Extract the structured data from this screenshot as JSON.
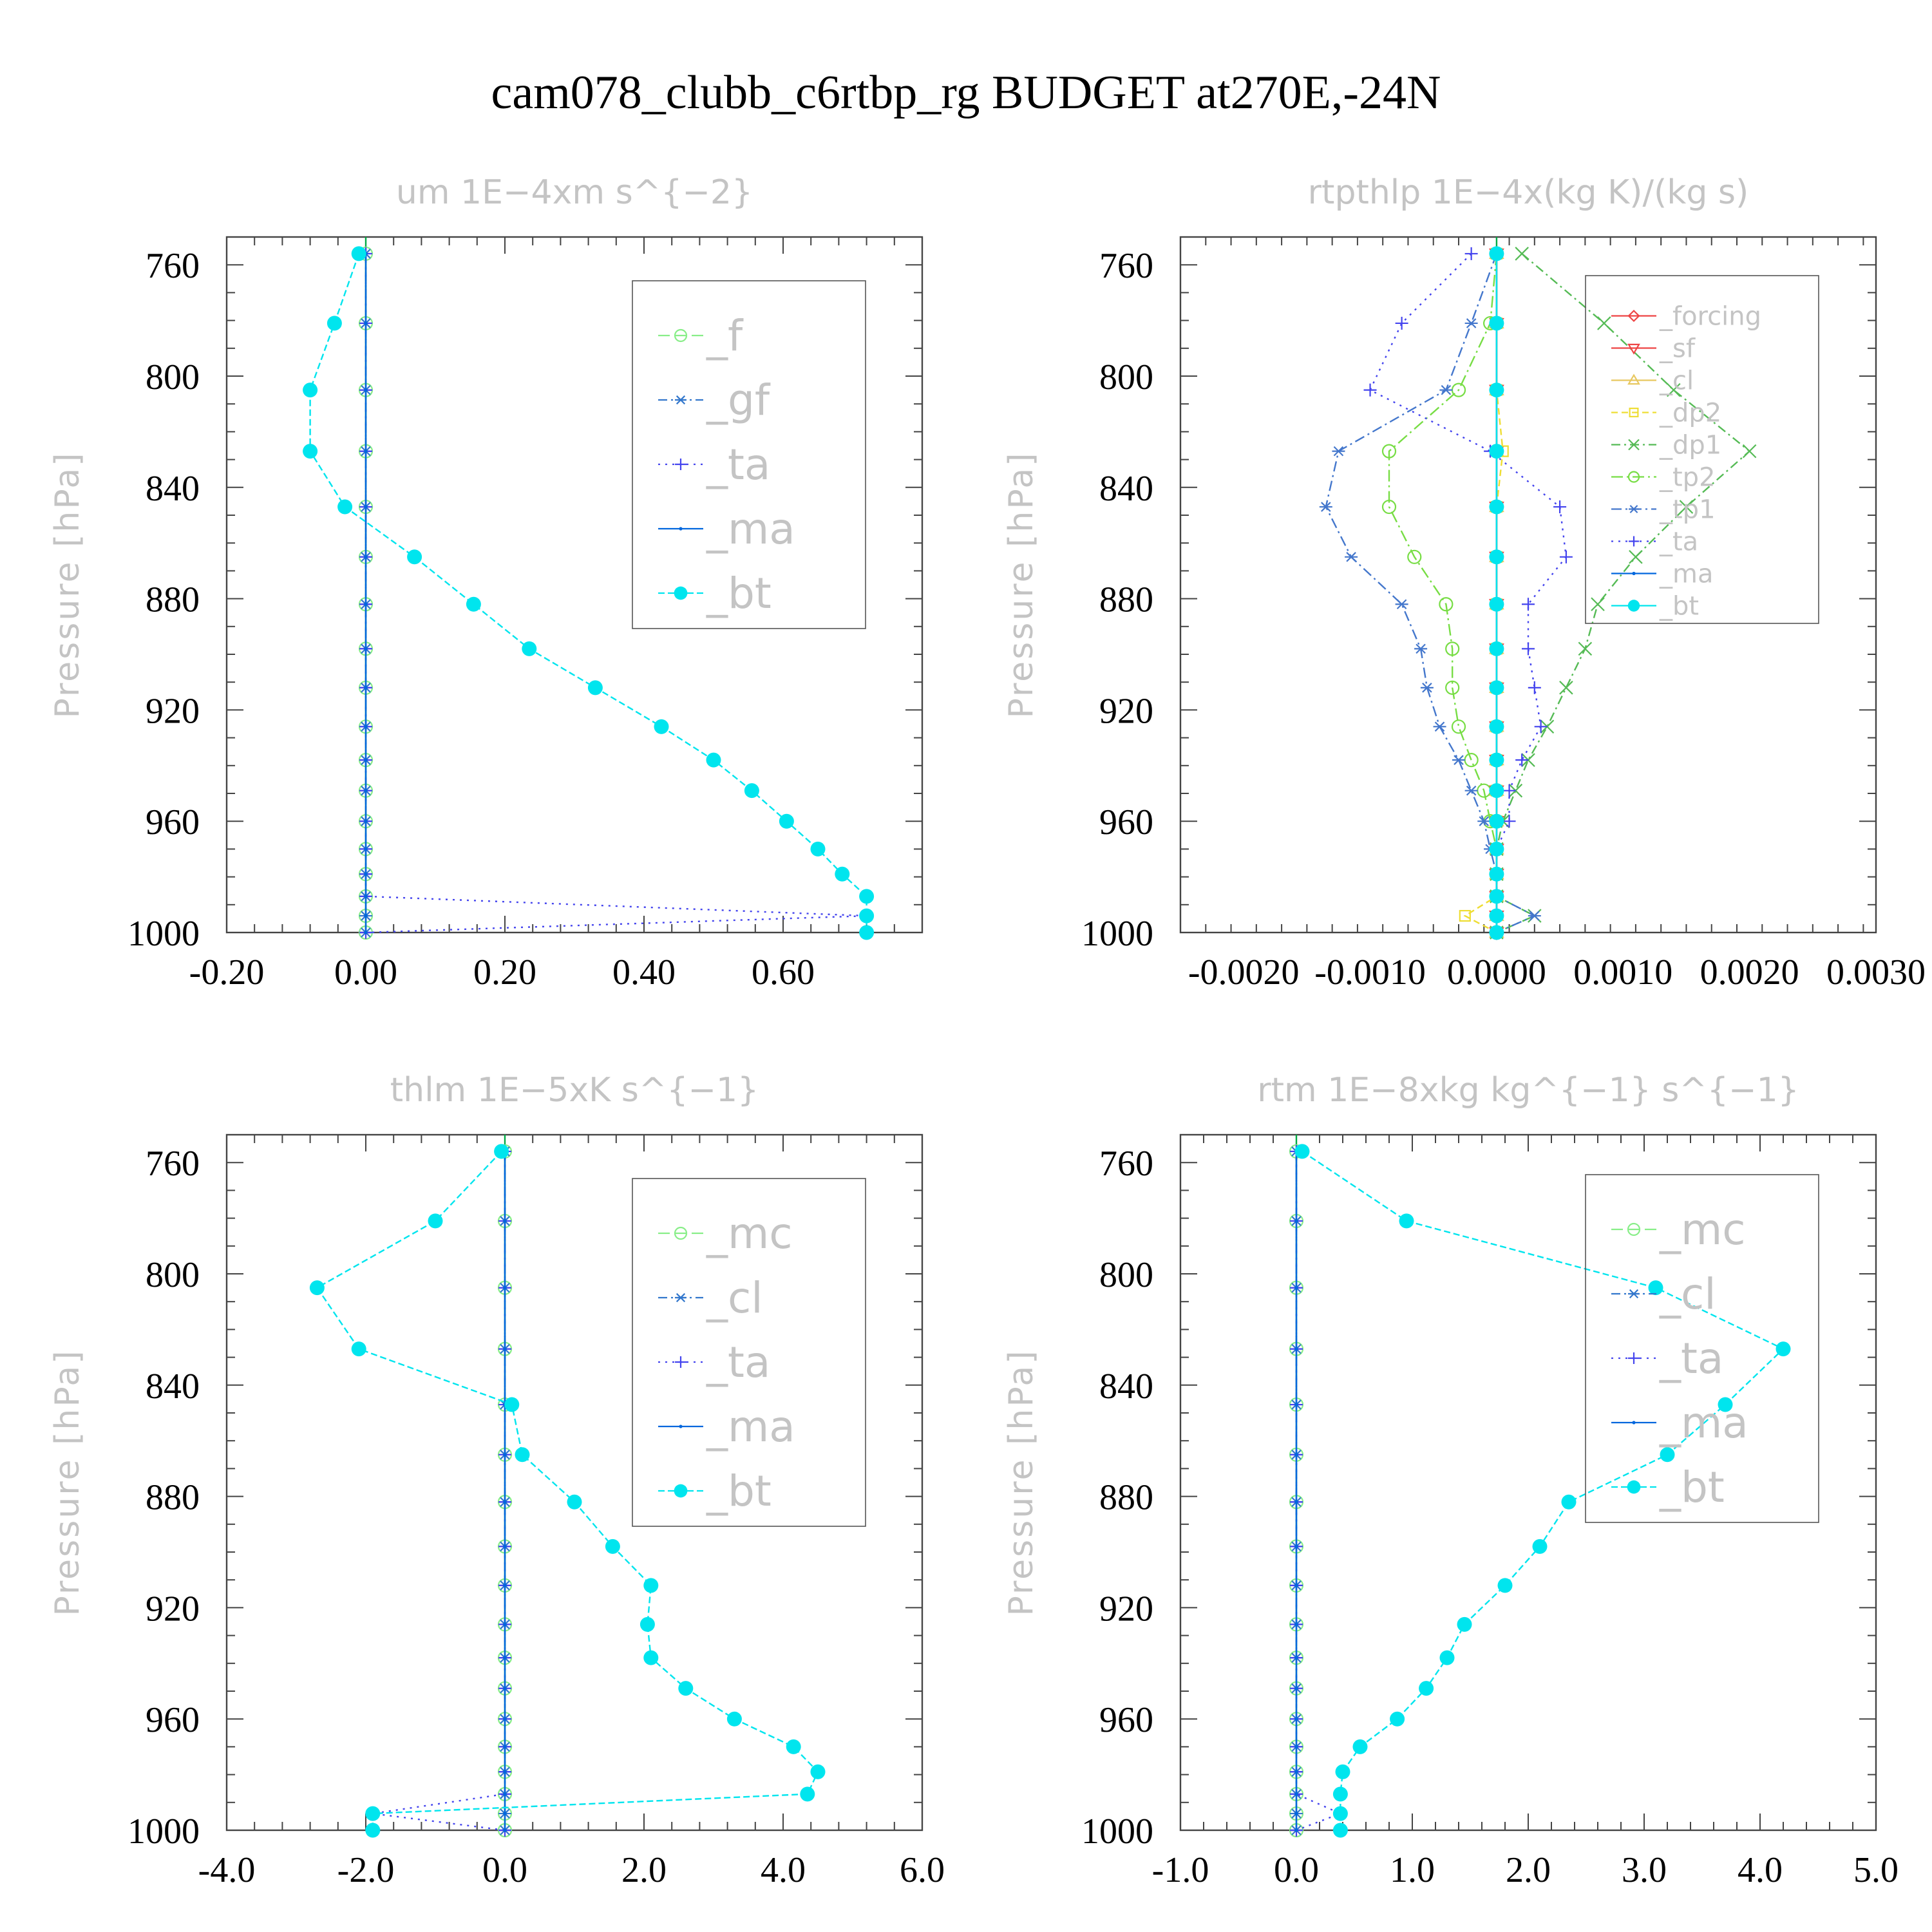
{
  "title": "cam078_clubb_c6rtbp_rg  BUDGET at270E,-24N",
  "colors": {
    "f": "#88ee88",
    "gf": "#3377cc",
    "ta": "#4444ee",
    "ma": "#0066dd",
    "bt": "#00e5ee",
    "forcing": "#ee4444",
    "sf": "#ee4444",
    "cl": "#e8c860",
    "dp2": "#eedd33",
    "dp1": "#55bb55",
    "tp2": "#77dd44",
    "tp1": "#4477cc",
    "mc": "#88ee88",
    "frame": "#444444",
    "zero": "#00aa44"
  },
  "chart_data": [
    {
      "type": "line",
      "title": "um   1E−4xm s^{−2}",
      "ylabel": "Pressure [hPa]",
      "xlim": [
        -0.2,
        0.8
      ],
      "ylim": [
        1000,
        750
      ],
      "xticks": [
        -0.2,
        0,
        0.2,
        0.4,
        0.6
      ],
      "xtick_labels": [
        "-0.20",
        "0.00",
        "0.20",
        "0.40",
        "0.60"
      ],
      "yticks": [
        760,
        800,
        840,
        880,
        920,
        960,
        1000
      ],
      "ytick_labels": [
        "760",
        "800",
        "840",
        "880",
        "920",
        "960",
        "1000"
      ],
      "legend_placement": "top-right",
      "legend_font_size": 66,
      "pressure": [
        756,
        781,
        805,
        827,
        847,
        865,
        882,
        898,
        912,
        926,
        938,
        949,
        960,
        970,
        979,
        987,
        994,
        1000
      ],
      "series": [
        {
          "name": "_f",
          "color_key": "f",
          "marker": "circle",
          "dash": "18,8",
          "values": [
            0,
            0,
            0,
            0,
            0,
            0,
            0,
            0,
            0,
            0,
            0,
            0,
            0,
            0,
            0,
            0,
            0,
            0
          ]
        },
        {
          "name": "_gf",
          "color_key": "gf",
          "marker": "asterisk",
          "dash": "14,6,3,6",
          "values": [
            0,
            0,
            0,
            0,
            0,
            0,
            0,
            0,
            0,
            0,
            0,
            0,
            0,
            0,
            0,
            0,
            0,
            0
          ]
        },
        {
          "name": "_ta",
          "color_key": "ta",
          "marker": "plus",
          "dash": "3,8",
          "values": [
            0,
            0,
            0,
            0,
            0,
            0,
            0,
            0,
            0,
            0,
            0,
            0,
            0,
            0,
            0,
            0,
            0.72,
            0
          ]
        },
        {
          "name": "_ma",
          "color_key": "ma",
          "marker": "dot",
          "dash": "",
          "values": [
            0,
            0,
            0,
            0,
            0,
            0,
            0,
            0,
            0,
            0,
            0,
            0,
            0,
            0,
            0,
            0,
            0,
            0
          ]
        },
        {
          "name": "_bt",
          "color_key": "bt",
          "marker": "bigdot",
          "dash": "10,5",
          "values": [
            -0.01,
            -0.045,
            -0.08,
            -0.08,
            -0.03,
            0.07,
            0.155,
            0.235,
            0.33,
            0.425,
            0.5,
            0.555,
            0.605,
            0.65,
            0.685,
            0.72,
            0.72,
            0.72
          ]
        }
      ]
    },
    {
      "type": "line",
      "title": "rtpthlp   1E−4x(kg K)/(kg s)",
      "ylabel": "Pressure [hPa]",
      "xlim": [
        -0.0025,
        0.003
      ],
      "ylim": [
        1000,
        750
      ],
      "xticks": [
        -0.002,
        -0.001,
        0,
        0.001,
        0.002,
        0.003
      ],
      "xtick_labels": [
        "-0.0020",
        "-0.0010",
        "0.0000",
        "0.0010",
        "0.0020",
        "0.0030"
      ],
      "yticks": [
        760,
        800,
        840,
        880,
        920,
        960,
        1000
      ],
      "ytick_labels": [
        "760",
        "800",
        "840",
        "880",
        "920",
        "960",
        "1000"
      ],
      "legend_placement": "top-right",
      "legend_font_size": 40,
      "pressure": [
        756,
        781,
        805,
        827,
        847,
        865,
        882,
        898,
        912,
        926,
        938,
        949,
        960,
        970,
        979,
        987,
        994,
        1000
      ],
      "series": [
        {
          "name": "_forcing",
          "color_key": "forcing",
          "marker": "diamond",
          "dash": "",
          "values": [
            0,
            0,
            0,
            0,
            0,
            0,
            0,
            0,
            0,
            0,
            0,
            0,
            0,
            0,
            0,
            0,
            0,
            0
          ]
        },
        {
          "name": "_sf",
          "color_key": "sf",
          "marker": "triangle-down",
          "dash": "",
          "values": [
            0,
            0,
            0,
            0,
            0,
            0,
            0,
            0,
            0,
            0,
            0,
            0,
            0,
            0,
            0,
            0,
            0,
            0
          ]
        },
        {
          "name": "_cl",
          "color_key": "cl",
          "marker": "triangle-up",
          "dash": "",
          "values": [
            0,
            0,
            0,
            0,
            0,
            0,
            0,
            0,
            0,
            0,
            0,
            0,
            0,
            0,
            0,
            0,
            0,
            0
          ]
        },
        {
          "name": "_dp2",
          "color_key": "dp2",
          "marker": "square",
          "dash": "10,6",
          "values": [
            0,
            0,
            0,
            5e-05,
            0,
            0,
            0,
            0,
            0,
            0,
            0,
            0,
            0,
            0,
            0,
            0,
            -0.00025,
            0
          ]
        },
        {
          "name": "_dp1",
          "color_key": "dp1",
          "marker": "cross",
          "dash": "14,6,3,6",
          "values": [
            0.0002,
            0.00085,
            0.0014,
            0.002,
            0.0015,
            0.0011,
            0.0008,
            0.0007,
            0.00055,
            0.0004,
            0.00025,
            0.00015,
            5e-05,
            0,
            0,
            0,
            0.0003,
            0
          ]
        },
        {
          "name": "_tp2",
          "color_key": "tp2",
          "marker": "circle",
          "dash": "18,6,3,6",
          "values": [
            0,
            -5e-05,
            -0.0003,
            -0.00085,
            -0.00085,
            -0.00065,
            -0.0004,
            -0.00035,
            -0.00035,
            -0.0003,
            -0.0002,
            -0.0001,
            -5e-05,
            0,
            0,
            0,
            0,
            0
          ]
        },
        {
          "name": "_tp1",
          "color_key": "tp1",
          "marker": "asterisk",
          "dash": "16,6,3,6",
          "values": [
            0,
            -0.0002,
            -0.0004,
            -0.00125,
            -0.00135,
            -0.00115,
            -0.00075,
            -0.0006,
            -0.00055,
            -0.00045,
            -0.0003,
            -0.0002,
            -0.0001,
            -5e-05,
            0,
            0,
            0.0003,
            0
          ]
        },
        {
          "name": "_ta",
          "color_key": "ta",
          "marker": "plus",
          "dash": "3,8",
          "values": [
            -0.0002,
            -0.00075,
            -0.001,
            -5e-05,
            0.0005,
            0.00055,
            0.00025,
            0.00025,
            0.0003,
            0.00035,
            0.0002,
            0.0001,
            0.0001,
            0,
            0,
            0,
            0,
            0
          ]
        },
        {
          "name": "_ma",
          "color_key": "ma",
          "marker": "dot",
          "dash": "",
          "values": [
            0,
            0,
            0,
            0,
            0,
            0,
            0,
            0,
            0,
            0,
            0,
            0,
            0,
            0,
            0,
            0,
            0,
            0
          ]
        },
        {
          "name": "_bt",
          "color_key": "bt",
          "marker": "bigdot",
          "dash": "",
          "values": [
            0,
            0,
            0,
            0,
            0,
            0,
            0,
            0,
            0,
            0,
            0,
            0,
            0,
            0,
            0,
            0,
            0,
            0
          ]
        }
      ]
    },
    {
      "type": "line",
      "title": "thlm   1E−5xK s^{−1}",
      "ylabel": "Pressure [hPa]",
      "xlim": [
        -4,
        6
      ],
      "ylim": [
        1000,
        750
      ],
      "xticks": [
        -4,
        -2,
        0,
        2,
        4,
        6
      ],
      "xtick_labels": [
        "-4.0",
        "-2.0",
        "0.0",
        "2.0",
        "4.0",
        "6.0"
      ],
      "yticks": [
        760,
        800,
        840,
        880,
        920,
        960,
        1000
      ],
      "ytick_labels": [
        "760",
        "800",
        "840",
        "880",
        "920",
        "960",
        "1000"
      ],
      "legend_placement": "top-right",
      "legend_font_size": 66,
      "pressure": [
        756,
        781,
        805,
        827,
        847,
        865,
        882,
        898,
        912,
        926,
        938,
        949,
        960,
        970,
        979,
        987,
        994,
        1000
      ],
      "series": [
        {
          "name": "_mc",
          "color_key": "mc",
          "marker": "circle",
          "dash": "18,8",
          "values": [
            0,
            0,
            0,
            0,
            0,
            0,
            0,
            0,
            0,
            0,
            0,
            0,
            0,
            0,
            0,
            0,
            0,
            0
          ]
        },
        {
          "name": "_cl",
          "color_key": "gf",
          "marker": "asterisk",
          "dash": "14,6,3,6",
          "values": [
            0,
            0,
            0,
            0,
            0,
            0,
            0,
            0,
            0,
            0,
            0,
            0,
            0,
            0,
            0,
            0,
            0,
            0
          ]
        },
        {
          "name": "_ta",
          "color_key": "ta",
          "marker": "plus",
          "dash": "3,8",
          "values": [
            0,
            0,
            0,
            0,
            0,
            0,
            0,
            0,
            0,
            0,
            0,
            0,
            0,
            0,
            0,
            0,
            -1.9,
            0
          ]
        },
        {
          "name": "_ma",
          "color_key": "ma",
          "marker": "dot",
          "dash": "",
          "values": [
            0,
            0,
            0,
            0,
            0,
            0,
            0,
            0,
            0,
            0,
            0,
            0,
            0,
            0,
            0,
            0,
            0,
            0
          ]
        },
        {
          "name": "_bt",
          "color_key": "bt",
          "marker": "bigdot",
          "dash": "10,5",
          "values": [
            -0.05,
            -1.0,
            -2.7,
            -2.1,
            0.1,
            0.25,
            1.0,
            1.55,
            2.1,
            2.05,
            2.1,
            2.6,
            3.3,
            4.15,
            4.5,
            4.35,
            -1.9,
            -1.9
          ]
        }
      ]
    },
    {
      "type": "line",
      "title": "rtm   1E−8xkg kg^{−1} s^{−1}",
      "ylabel": "Pressure [hPa]",
      "xlim": [
        -1,
        5
      ],
      "ylim": [
        1000,
        750
      ],
      "xticks": [
        -1,
        0,
        1,
        2,
        3,
        4,
        5
      ],
      "xtick_labels": [
        "-1.0",
        "0.0",
        "1.0",
        "2.0",
        "3.0",
        "4.0",
        "5.0"
      ],
      "yticks": [
        760,
        800,
        840,
        880,
        920,
        960,
        1000
      ],
      "ytick_labels": [
        "760",
        "800",
        "840",
        "880",
        "920",
        "960",
        "1000"
      ],
      "legend_placement": "top-right",
      "legend_font_size": 66,
      "pressure": [
        756,
        781,
        805,
        827,
        847,
        865,
        882,
        898,
        912,
        926,
        938,
        949,
        960,
        970,
        979,
        987,
        994,
        1000
      ],
      "series": [
        {
          "name": "_mc",
          "color_key": "mc",
          "marker": "circle",
          "dash": "18,8",
          "values": [
            0,
            0,
            0,
            0,
            0,
            0,
            0,
            0,
            0,
            0,
            0,
            0,
            0,
            0,
            0,
            0,
            0,
            0
          ]
        },
        {
          "name": "_cl",
          "color_key": "gf",
          "marker": "asterisk",
          "dash": "14,6,3,6",
          "values": [
            0,
            0,
            0,
            0,
            0,
            0,
            0,
            0,
            0,
            0,
            0,
            0,
            0,
            0,
            0,
            0,
            0,
            0
          ]
        },
        {
          "name": "_ta",
          "color_key": "ta",
          "marker": "plus",
          "dash": "3,8",
          "values": [
            0,
            0,
            0,
            0,
            0,
            0,
            0,
            0,
            0,
            0,
            0,
            0,
            0,
            0,
            0,
            0,
            0.38,
            0
          ]
        },
        {
          "name": "_ma",
          "color_key": "ma",
          "marker": "dot",
          "dash": "",
          "values": [
            0,
            0,
            0,
            0,
            0,
            0,
            0,
            0,
            0,
            0,
            0,
            0,
            0,
            0,
            0,
            0,
            0,
            0
          ]
        },
        {
          "name": "_bt",
          "color_key": "bt",
          "marker": "bigdot",
          "dash": "10,5",
          "values": [
            0.05,
            0.95,
            3.1,
            4.2,
            3.7,
            3.2,
            2.35,
            2.1,
            1.8,
            1.45,
            1.3,
            1.12,
            0.87,
            0.55,
            0.4,
            0.38,
            0.38,
            0.38
          ]
        }
      ]
    }
  ]
}
